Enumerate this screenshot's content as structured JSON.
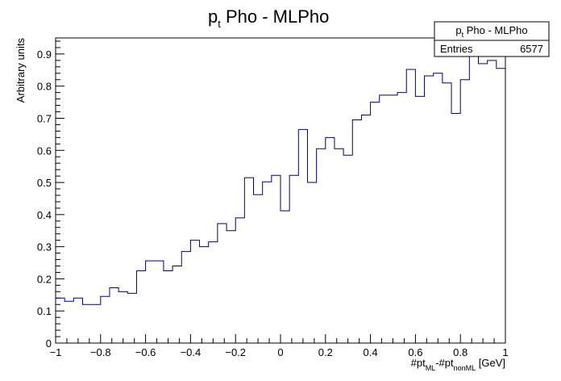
{
  "chart_data": {
    "type": "histogram-step",
    "title": {
      "main": "p",
      "sub": "t",
      "rest": " Pho - MLPho"
    },
    "xlabel": {
      "p1": "#pt",
      "s1": "ML",
      "p2": "-#pt",
      "s2": "nonML",
      "p3": " [GeV]"
    },
    "ylabel": "Arbitrary units",
    "xlim": [
      -1,
      1
    ],
    "ylim": [
      0,
      0.95
    ],
    "x_ticks": [
      -1,
      -0.8,
      -0.6,
      -0.4,
      -0.2,
      0,
      0.2,
      0.4,
      0.6,
      0.8,
      1
    ],
    "x_tick_labels": [
      "−1",
      "−0.8",
      "−0.6",
      "−0.4",
      "−0.2",
      "0",
      "0.2",
      "0.4",
      "0.6",
      "0.8",
      "1"
    ],
    "y_ticks": [
      0,
      0.1,
      0.2,
      0.3,
      0.4,
      0.5,
      0.6,
      0.7,
      0.8,
      0.9
    ],
    "y_tick_labels": [
      "0",
      "0.1",
      "0.2",
      "0.3",
      "0.4",
      "0.5",
      "0.6",
      "0.7",
      "0.8",
      "0.9"
    ],
    "bin_edges": [
      -1,
      -0.96,
      -0.92,
      -0.88,
      -0.84,
      -0.8,
      -0.76,
      -0.72,
      -0.68,
      -0.64,
      -0.6,
      -0.56,
      -0.52,
      -0.48,
      -0.44,
      -0.4,
      -0.36,
      -0.32,
      -0.28,
      -0.24,
      -0.2,
      -0.16,
      -0.12,
      -0.08,
      -0.04,
      0,
      0.04,
      0.08,
      0.12,
      0.16,
      0.2,
      0.24,
      0.28,
      0.32,
      0.36,
      0.4,
      0.44,
      0.48,
      0.52,
      0.56,
      0.6,
      0.64,
      0.68,
      0.72,
      0.76,
      0.8,
      0.84,
      0.88,
      0.92,
      0.96,
      1
    ],
    "values": [
      0.14,
      0.13,
      0.14,
      0.12,
      0.12,
      0.145,
      0.172,
      0.16,
      0.155,
      0.225,
      0.256,
      0.256,
      0.225,
      0.24,
      0.285,
      0.32,
      0.3,
      0.315,
      0.372,
      0.35,
      0.39,
      0.515,
      0.462,
      0.502,
      0.522,
      0.412,
      0.522,
      0.665,
      0.5,
      0.605,
      0.64,
      0.605,
      0.585,
      0.695,
      0.71,
      0.75,
      0.772,
      0.772,
      0.78,
      0.852,
      0.768,
      0.832,
      0.84,
      0.81,
      0.715,
      0.82,
      0.91,
      0.87,
      0.88,
      0.855
    ],
    "line_color": "#000080",
    "grid": false,
    "stats_box": {
      "title": {
        "main": "p",
        "sub": "t",
        "rest": " Pho - MLPho"
      },
      "entries_label": "Entries",
      "entries_value": "6577",
      "position": "top-right"
    }
  }
}
